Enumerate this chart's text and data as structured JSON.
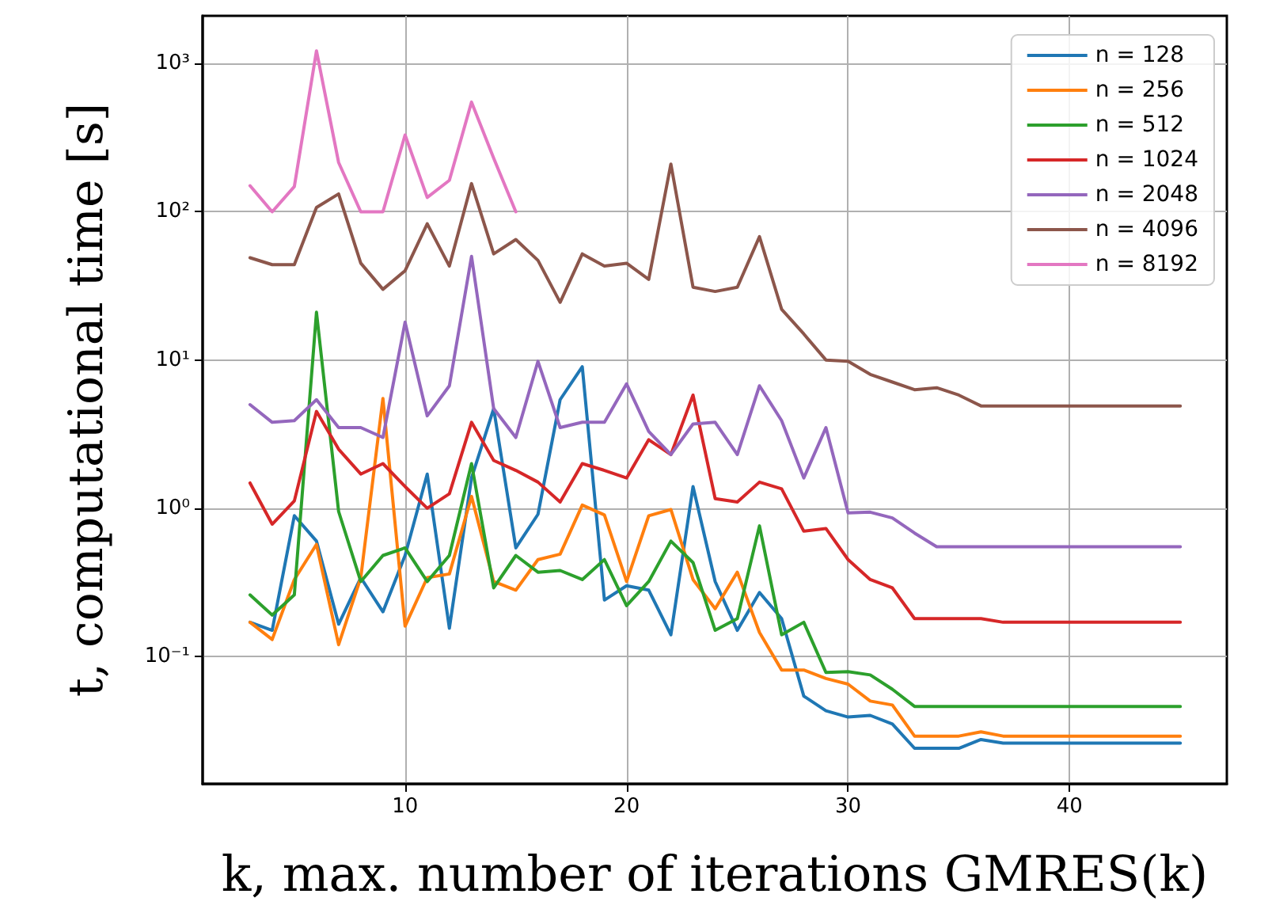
{
  "chart_data": {
    "type": "line",
    "xlabel": "k, max. number of iterations GMRES(k)",
    "ylabel": "t, computational time [s]",
    "log": "y",
    "grid": true,
    "legend": "top right",
    "line_style": "solid",
    "marker": "none",
    "x": [
      3,
      4,
      5,
      6,
      7,
      8,
      9,
      10,
      11,
      12,
      13,
      14,
      15,
      16,
      17,
      18,
      19,
      20,
      21,
      22,
      23,
      24,
      25,
      26,
      27,
      28,
      29,
      30,
      31,
      32,
      33,
      34,
      35,
      36,
      37,
      38,
      39,
      40,
      41,
      42,
      43,
      44,
      45
    ],
    "xlim": [
      0.86,
      47.1
    ],
    "xticks": [
      10,
      20,
      30,
      40
    ],
    "ylim": [
      0.0138,
      2100
    ],
    "yticks": [
      {
        "value": 0.1,
        "label": "10⁻¹"
      },
      {
        "value": 1,
        "label": "10⁰"
      },
      {
        "value": 10,
        "label": "10¹"
      },
      {
        "value": 100,
        "label": "10²"
      },
      {
        "value": 1000,
        "label": "10³"
      }
    ],
    "series": [
      {
        "name": "n = 128",
        "color": "#1f77b4",
        "values": [
          0.17,
          0.15,
          0.89,
          0.6,
          0.165,
          0.34,
          0.2,
          0.48,
          1.7,
          0.155,
          1.6,
          4.7,
          0.54,
          0.91,
          5.4,
          9.0,
          0.24,
          0.3,
          0.28,
          0.14,
          1.4,
          0.32,
          0.15,
          0.27,
          0.18,
          0.054,
          0.043,
          0.039,
          0.04,
          0.035,
          0.024,
          0.024,
          0.024,
          0.0275,
          0.026,
          0.026,
          0.026,
          0.026,
          0.026,
          0.026,
          0.026,
          0.026,
          0.026
        ]
      },
      {
        "name": "n = 256",
        "color": "#ff7f0e",
        "values": [
          0.17,
          0.13,
          0.33,
          0.57,
          0.12,
          0.34,
          5.5,
          0.16,
          0.34,
          0.36,
          1.2,
          0.32,
          0.28,
          0.45,
          0.49,
          1.05,
          0.9,
          0.32,
          0.89,
          0.98,
          0.33,
          0.21,
          0.37,
          0.145,
          0.081,
          0.081,
          0.071,
          0.065,
          0.05,
          0.047,
          0.029,
          0.029,
          0.029,
          0.031,
          0.029,
          0.029,
          0.029,
          0.029,
          0.029,
          0.029,
          0.029,
          0.029,
          0.029
        ]
      },
      {
        "name": "n = 512",
        "color": "#2ca02c",
        "values": [
          0.26,
          0.19,
          0.26,
          21,
          0.95,
          0.32,
          0.48,
          0.54,
          0.32,
          0.48,
          2.0,
          0.29,
          0.48,
          0.37,
          0.38,
          0.33,
          0.45,
          0.22,
          0.32,
          0.6,
          0.43,
          0.15,
          0.18,
          0.76,
          0.14,
          0.17,
          0.078,
          0.079,
          0.075,
          0.06,
          0.046,
          0.046,
          0.046,
          0.046,
          0.046,
          0.046,
          0.046,
          0.046,
          0.046,
          0.046,
          0.046,
          0.046,
          0.046
        ]
      },
      {
        "name": "n = 1024",
        "color": "#d62728",
        "values": [
          1.48,
          0.78,
          1.12,
          4.5,
          2.5,
          1.7,
          2.0,
          1.4,
          1.0,
          1.25,
          3.8,
          2.1,
          1.8,
          1.5,
          1.1,
          2.0,
          1.8,
          1.6,
          2.9,
          2.3,
          5.8,
          1.16,
          1.1,
          1.5,
          1.35,
          0.7,
          0.73,
          0.45,
          0.33,
          0.29,
          0.18,
          0.18,
          0.18,
          0.18,
          0.17,
          0.17,
          0.17,
          0.17,
          0.17,
          0.17,
          0.17,
          0.17,
          0.17
        ]
      },
      {
        "name": "n = 2048",
        "color": "#9467bd",
        "values": [
          5.0,
          3.8,
          3.9,
          5.4,
          3.5,
          3.5,
          3.0,
          18,
          4.2,
          6.7,
          50,
          4.7,
          3.0,
          9.8,
          3.5,
          3.8,
          3.8,
          6.9,
          3.3,
          2.3,
          3.7,
          3.8,
          2.3,
          6.7,
          3.9,
          1.6,
          3.5,
          0.93,
          0.94,
          0.86,
          0.68,
          0.55,
          0.55,
          0.55,
          0.55,
          0.55,
          0.55,
          0.55,
          0.55,
          0.55,
          0.55,
          0.55,
          0.55
        ]
      },
      {
        "name": "n = 4096",
        "color": "#8c564b",
        "values": [
          49,
          44,
          44,
          107,
          132,
          45,
          30,
          40,
          83,
          43,
          155,
          52,
          65,
          47,
          24.5,
          52,
          43,
          45,
          35,
          210,
          31,
          29,
          31,
          68,
          22,
          15,
          10,
          9.8,
          8,
          7.1,
          6.3,
          6.5,
          5.8,
          4.9,
          4.9,
          4.9,
          4.9,
          4.9,
          4.9,
          4.9,
          4.9,
          4.9,
          4.9
        ]
      },
      {
        "name": "n = 8192",
        "color": "#e377c2",
        "values": [
          150,
          100,
          148,
          1220,
          215,
          100,
          100,
          330,
          125,
          163,
          550,
          230,
          100,
          null,
          null,
          null,
          null,
          null,
          null,
          null,
          null,
          null,
          null,
          null,
          null,
          null,
          null,
          null,
          null,
          null,
          null,
          null,
          null,
          null,
          null,
          null,
          null,
          null,
          null,
          null,
          null,
          null,
          null
        ]
      }
    ]
  }
}
